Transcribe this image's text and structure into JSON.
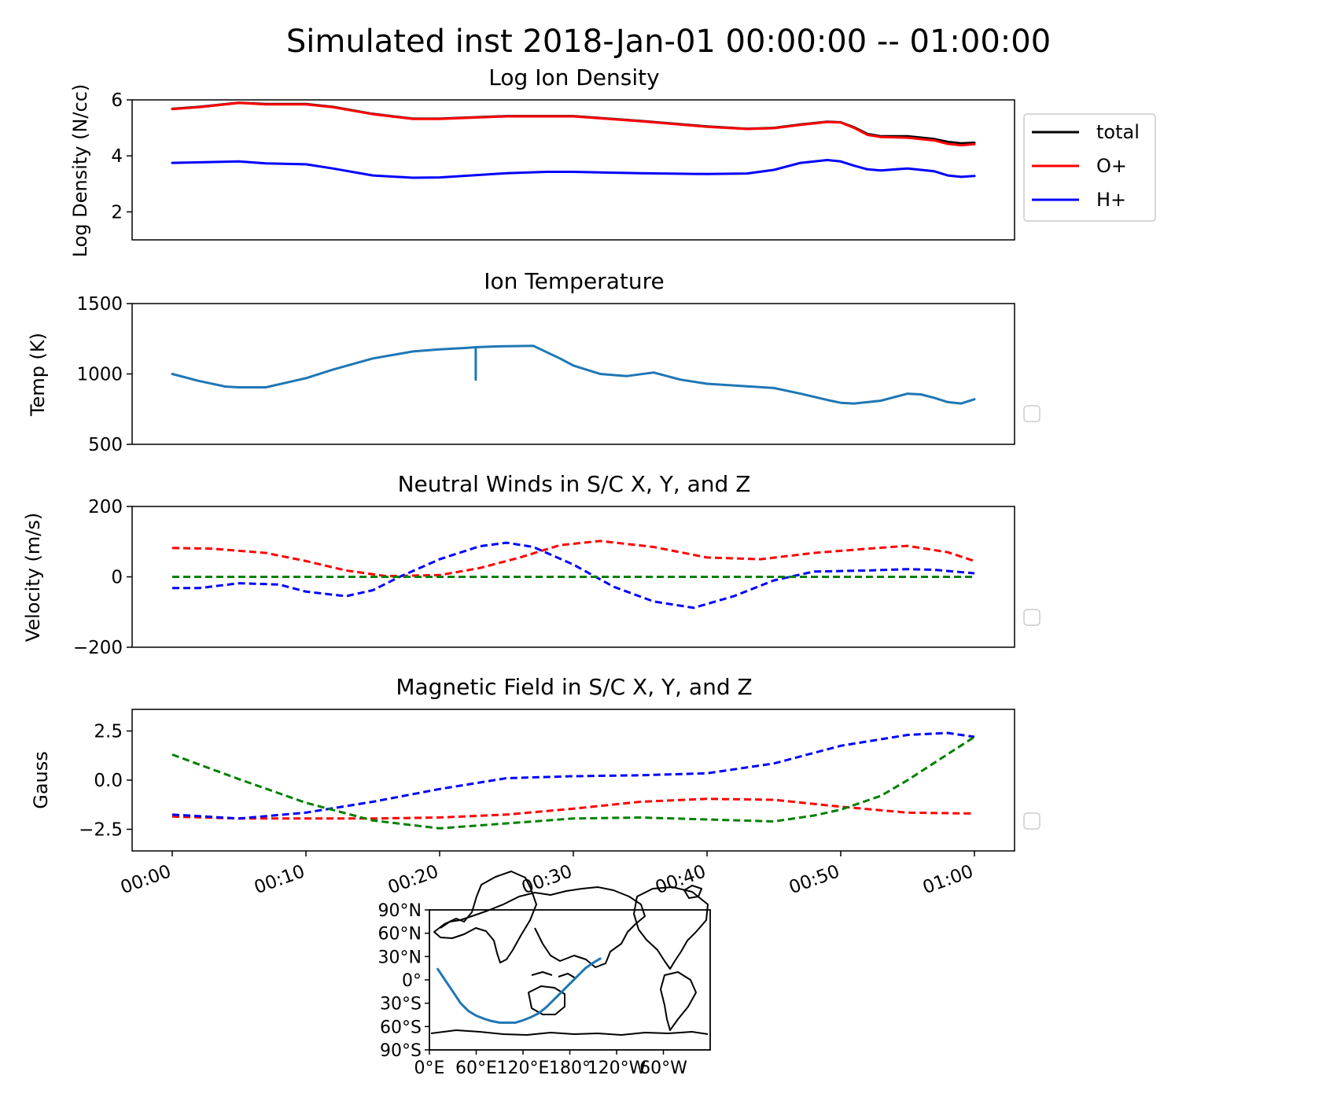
{
  "figure": {
    "title": "Simulated inst 2018-Jan-01 00:00:00 -- 01:00:00"
  },
  "time_ticks": [
    "00:00",
    "00:10",
    "00:20",
    "00:30",
    "00:40",
    "00:50",
    "01:00"
  ],
  "chart_data": [
    {
      "type": "line",
      "title": "Log Ion Density",
      "xlabel": "",
      "ylabel": "Log Density (N/cc)",
      "xlim": [
        -3,
        63
      ],
      "ylim": [
        1,
        6
      ],
      "yticks": [
        2,
        4,
        6
      ],
      "yticklabels": [
        "2",
        "4",
        "6"
      ],
      "legend_position": "outside-right-top",
      "series": [
        {
          "name": "total",
          "color": "#000000",
          "style": "solid",
          "x": [
            0,
            2,
            5,
            7,
            10,
            12,
            15,
            18,
            20,
            25,
            28,
            30,
            35,
            40,
            43,
            45,
            47,
            49,
            50,
            51,
            52,
            53,
            55,
            57,
            58,
            59,
            60
          ],
          "y": [
            5.68,
            5.75,
            5.9,
            5.85,
            5.85,
            5.75,
            5.5,
            5.33,
            5.33,
            5.42,
            5.42,
            5.42,
            5.25,
            5.05,
            4.97,
            5.0,
            5.12,
            5.22,
            5.2,
            5.02,
            4.78,
            4.7,
            4.7,
            4.6,
            4.5,
            4.45,
            4.47
          ]
        },
        {
          "name": "O+",
          "color": "#ff0000",
          "style": "solid",
          "x": [
            0,
            2,
            5,
            7,
            10,
            12,
            15,
            18,
            20,
            25,
            28,
            30,
            35,
            40,
            43,
            45,
            47,
            49,
            50,
            51,
            52,
            53,
            55,
            57,
            58,
            59,
            60
          ],
          "y": [
            5.67,
            5.74,
            5.89,
            5.84,
            5.84,
            5.74,
            5.49,
            5.32,
            5.32,
            5.41,
            5.41,
            5.41,
            5.24,
            5.04,
            4.96,
            4.99,
            5.11,
            5.21,
            5.19,
            5.0,
            4.75,
            4.67,
            4.65,
            4.55,
            4.43,
            4.38,
            4.42
          ]
        },
        {
          "name": "H+",
          "color": "#0000ff",
          "style": "solid",
          "x": [
            0,
            2,
            5,
            7,
            10,
            12,
            15,
            18,
            20,
            25,
            28,
            30,
            35,
            40,
            43,
            45,
            47,
            49,
            50,
            51,
            52,
            53,
            55,
            57,
            58,
            59,
            60
          ],
          "y": [
            3.75,
            3.77,
            3.8,
            3.73,
            3.7,
            3.55,
            3.3,
            3.22,
            3.23,
            3.38,
            3.43,
            3.43,
            3.38,
            3.35,
            3.37,
            3.5,
            3.75,
            3.85,
            3.8,
            3.65,
            3.52,
            3.48,
            3.55,
            3.45,
            3.3,
            3.25,
            3.28
          ]
        }
      ]
    },
    {
      "type": "line",
      "title": "Ion Temperature",
      "xlabel": "",
      "ylabel": "Temp (K)",
      "xlim": [
        -3,
        63
      ],
      "ylim": [
        500,
        1500
      ],
      "yticks": [
        500,
        1000,
        1500
      ],
      "yticklabels": [
        "500",
        "1000",
        "1500"
      ],
      "series": [
        {
          "color": "#1f77b4",
          "style": "solid",
          "x": [
            0,
            2,
            4,
            5,
            7,
            10,
            12,
            15,
            18,
            20,
            22,
            22.7,
            22.7,
            22.7,
            24,
            25,
            27,
            29,
            30,
            32,
            34,
            36,
            38,
            40,
            45,
            47,
            49,
            50,
            51,
            53,
            55,
            56,
            57,
            58,
            59,
            60
          ],
          "y": [
            1000,
            950,
            910,
            905,
            905,
            970,
            1030,
            1110,
            1160,
            1175,
            1185,
            1190,
            960,
            1190,
            1195,
            1197,
            1200,
            1110,
            1060,
            1000,
            985,
            1010,
            960,
            930,
            900,
            860,
            815,
            795,
            790,
            810,
            860,
            855,
            830,
            800,
            790,
            820
          ]
        }
      ]
    },
    {
      "type": "line",
      "title": "Neutral Winds in S/C X, Y, and Z",
      "xlabel": "",
      "ylabel": "Velocity (m/s)",
      "xlim": [
        -3,
        63
      ],
      "ylim": [
        -200,
        200
      ],
      "yticks": [
        -200,
        0,
        200
      ],
      "yticklabels": [
        "−200",
        "0",
        "200"
      ],
      "series": [
        {
          "color": "#ff0000",
          "style": "dashed",
          "x": [
            0,
            3,
            7,
            10,
            13,
            16,
            20,
            23,
            26,
            29,
            32,
            36,
            40,
            44,
            48,
            52,
            55,
            58,
            60
          ],
          "y": [
            82,
            80,
            68,
            45,
            18,
            2,
            5,
            25,
            55,
            90,
            102,
            85,
            55,
            50,
            68,
            80,
            88,
            70,
            45
          ]
        },
        {
          "color": "#0000ff",
          "style": "dashed",
          "x": [
            0,
            2,
            5,
            8,
            10,
            13,
            15,
            17,
            20,
            23,
            25,
            27,
            30,
            33,
            36,
            39,
            42,
            45,
            48,
            52,
            55,
            57,
            60
          ],
          "y": [
            -32,
            -32,
            -18,
            -22,
            -42,
            -55,
            -38,
            0,
            50,
            87,
            97,
            85,
            35,
            -28,
            -70,
            -88,
            -55,
            -10,
            15,
            18,
            22,
            20,
            10
          ]
        },
        {
          "color": "#008000",
          "style": "dashed",
          "x": [
            0,
            10,
            20,
            30,
            40,
            50,
            60
          ],
          "y": [
            0,
            0,
            0,
            0,
            0,
            0,
            0
          ]
        }
      ]
    },
    {
      "type": "line",
      "title": "Magnetic Field in S/C X, Y, and Z",
      "xlabel": "",
      "ylabel": "Gauss",
      "xlim": [
        -3,
        63
      ],
      "ylim": [
        -3.6,
        3.6
      ],
      "yticks": [
        -2.5,
        0.0,
        2.5
      ],
      "yticklabels": [
        "−2.5",
        "0.0",
        "2.5"
      ],
      "series": [
        {
          "color": "#ff0000",
          "style": "dashed",
          "x": [
            0,
            5,
            10,
            15,
            20,
            25,
            30,
            35,
            40,
            45,
            50,
            55,
            60
          ],
          "y": [
            -1.85,
            -1.95,
            -1.95,
            -1.95,
            -1.9,
            -1.75,
            -1.45,
            -1.1,
            -0.95,
            -1.0,
            -1.35,
            -1.65,
            -1.7
          ]
        },
        {
          "color": "#0000ff",
          "style": "dashed",
          "x": [
            0,
            5,
            10,
            15,
            20,
            25,
            30,
            35,
            40,
            45,
            50,
            55,
            58,
            60
          ],
          "y": [
            -1.75,
            -1.95,
            -1.65,
            -1.1,
            -0.45,
            0.1,
            0.2,
            0.25,
            0.35,
            0.85,
            1.75,
            2.3,
            2.4,
            2.2
          ]
        },
        {
          "color": "#008000",
          "style": "dashed",
          "x": [
            0,
            5,
            10,
            15,
            20,
            25,
            30,
            35,
            40,
            45,
            48,
            50,
            53,
            55,
            60
          ],
          "y": [
            1.3,
            0.05,
            -1.15,
            -2.05,
            -2.45,
            -2.2,
            -1.95,
            -1.9,
            -2.0,
            -2.1,
            -1.8,
            -1.5,
            -0.8,
            0.0,
            2.2
          ]
        }
      ]
    }
  ],
  "map": {
    "yticks": [
      "90°N",
      "60°N",
      "30°N",
      "0°",
      "30°S",
      "60°S",
      "90°S"
    ],
    "xticks": [
      "0°E",
      "60°E",
      "120°E",
      "180°",
      "120°W",
      "60°W"
    ],
    "track_color": "#1f77b4",
    "track_lon": [
      10,
      20,
      30,
      40,
      50,
      60,
      70,
      80,
      90,
      100,
      110,
      120,
      130,
      140,
      150,
      160,
      170,
      180,
      190,
      200,
      210,
      220
    ],
    "track_lat": [
      15,
      0,
      -15,
      -30,
      -40,
      -46,
      -50,
      -53,
      -55,
      -55,
      -55,
      -52,
      -48,
      -43,
      -35,
      -25,
      -15,
      -5,
      5,
      15,
      22,
      28
    ]
  }
}
